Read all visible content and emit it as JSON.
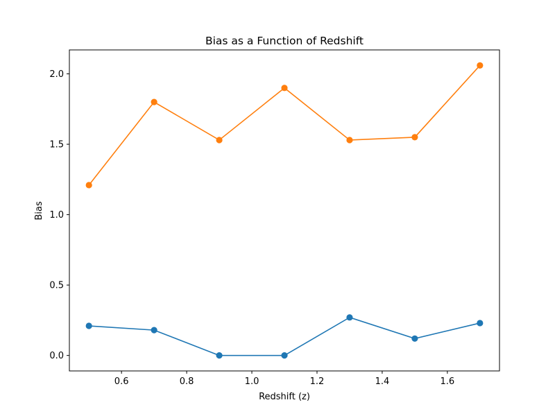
{
  "chart_data": {
    "type": "line",
    "title": "Bias as a Function of Redshift",
    "xlabel": "Redshift (z)",
    "ylabel": "Bias",
    "x": [
      0.5,
      0.7,
      0.9,
      1.1,
      1.3,
      1.5,
      1.7
    ],
    "xlim": [
      0.44,
      1.76
    ],
    "ylim": [
      -0.11,
      2.17
    ],
    "xticks": [
      0.6,
      0.8,
      1.0,
      1.2,
      1.4,
      1.6
    ],
    "xtick_labels": [
      "0.6",
      "0.8",
      "1.0",
      "1.2",
      "1.4",
      "1.6"
    ],
    "yticks": [
      0.0,
      0.5,
      1.0,
      1.5,
      2.0
    ],
    "ytick_labels": [
      "0.0",
      "0.5",
      "1.0",
      "1.5",
      "2.0"
    ],
    "grid": false,
    "markers": true,
    "series": [
      {
        "color": "#1f77b4",
        "values": [
          0.21,
          0.18,
          0.0,
          0.0,
          0.27,
          0.12,
          0.23
        ]
      },
      {
        "color": "#ff7f0e",
        "values": [
          1.21,
          1.8,
          1.53,
          1.9,
          1.53,
          1.55,
          2.06
        ]
      }
    ]
  }
}
